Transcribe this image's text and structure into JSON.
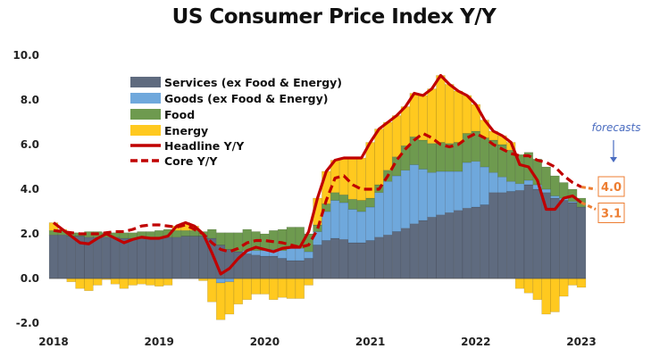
{
  "chart_data": {
    "type": "bar",
    "title": "US Consumer Price Index Y/Y",
    "xlabel": "",
    "ylabel": "",
    "ylim": [
      -2,
      10
    ],
    "y_ticks": [
      "10.0",
      "8.0",
      "6.0",
      "4.0",
      "2.0",
      "0.0",
      "-2.0"
    ],
    "x_ticks": [
      "2018",
      "2019",
      "2020",
      "2021",
      "2022",
      "2023"
    ],
    "grid": false,
    "legend_position": "top-left",
    "stacked": true,
    "series": [
      {
        "name": "Services (ex Food & Energy)",
        "kind": "bar",
        "color": "#5f6b7f",
        "values": [
          1.95,
          1.95,
          1.9,
          1.9,
          1.85,
          1.85,
          1.85,
          1.85,
          1.8,
          1.8,
          1.8,
          1.8,
          1.8,
          1.85,
          1.85,
          1.9,
          1.9,
          1.9,
          1.8,
          1.5,
          1.3,
          1.2,
          1.1,
          1.05,
          1.0,
          1.0,
          0.9,
          0.8,
          0.8,
          0.9,
          1.5,
          1.7,
          1.8,
          1.75,
          1.6,
          1.6,
          1.7,
          1.85,
          1.95,
          2.1,
          2.25,
          2.45,
          2.6,
          2.75,
          2.85,
          2.95,
          3.05,
          3.15,
          3.2,
          3.3,
          3.85,
          3.85,
          3.9,
          3.95,
          4.2,
          4.0,
          3.85,
          3.6,
          3.5,
          3.4,
          3.2
        ]
      },
      {
        "name": "Goods (ex Food & Energy)",
        "kind": "bar",
        "color": "#6fa8dc",
        "values": [
          0,
          0,
          0,
          0,
          0,
          0,
          0,
          0,
          0,
          0,
          0,
          0,
          0,
          0,
          0,
          0,
          0,
          0,
          0,
          -0.2,
          -0.15,
          0,
          0.15,
          0.2,
          0.25,
          0.3,
          0.35,
          0.55,
          0.55,
          0.3,
          0.6,
          1.3,
          1.7,
          1.65,
          1.5,
          1.4,
          1.5,
          2.0,
          2.4,
          2.5,
          2.6,
          2.65,
          2.3,
          2.0,
          1.95,
          1.85,
          1.75,
          2.05,
          2.05,
          1.7,
          0.9,
          0.7,
          0.45,
          0.3,
          0.2,
          0.2,
          0.15,
          0.1,
          0.1,
          0.05,
          0.0
        ]
      },
      {
        "name": "Food",
        "kind": "bar",
        "color": "#6e9a4f",
        "values": [
          0.2,
          0.2,
          0.15,
          0.15,
          0.25,
          0.25,
          0.2,
          0.2,
          0.25,
          0.25,
          0.3,
          0.3,
          0.35,
          0.35,
          0.3,
          0.25,
          0.25,
          0.2,
          0.4,
          0.55,
          0.75,
          0.85,
          0.95,
          0.85,
          0.75,
          0.85,
          0.95,
          0.95,
          0.95,
          0.8,
          0.3,
          0.35,
          0.35,
          0.35,
          0.45,
          0.5,
          0.4,
          0.35,
          0.5,
          0.85,
          1.1,
          1.25,
          1.3,
          1.3,
          1.3,
          1.25,
          1.3,
          1.3,
          1.35,
          1.3,
          1.45,
          1.45,
          1.4,
          1.3,
          1.25,
          1.15,
          1.0,
          0.9,
          0.7,
          0.55,
          0.4
        ]
      },
      {
        "name": "Energy",
        "kind": "bar",
        "color": "#ffc91f",
        "values": [
          0.35,
          0.05,
          -0.15,
          -0.45,
          -0.55,
          -0.3,
          -0.05,
          -0.25,
          -0.45,
          -0.3,
          -0.25,
          -0.3,
          -0.35,
          -0.3,
          0.2,
          0.35,
          0.2,
          -0.1,
          -1.05,
          -1.65,
          -1.45,
          -1.15,
          -0.95,
          -0.7,
          -0.7,
          -0.95,
          -0.85,
          -0.9,
          -0.9,
          -0.3,
          1.2,
          1.45,
          1.45,
          1.65,
          1.85,
          1.9,
          2.5,
          2.5,
          2.15,
          1.85,
          1.75,
          1.95,
          2.0,
          2.45,
          3.0,
          2.65,
          2.3,
          1.7,
          1.2,
          0.8,
          0.4,
          0.4,
          0.35,
          -0.45,
          -0.65,
          -0.95,
          -1.6,
          -1.5,
          -0.8,
          -0.3,
          -0.4
        ]
      },
      {
        "name": "Headline Y/Y",
        "kind": "line",
        "color": "#c00000",
        "dash": false,
        "values": [
          2.5,
          2.2,
          1.9,
          1.6,
          1.55,
          1.8,
          2.0,
          1.8,
          1.6,
          1.75,
          1.85,
          1.8,
          1.8,
          1.9,
          2.35,
          2.5,
          2.35,
          2.0,
          1.15,
          0.2,
          0.45,
          0.9,
          1.25,
          1.4,
          1.3,
          1.2,
          1.35,
          1.4,
          1.4,
          2.1,
          3.6,
          4.8,
          5.3,
          5.4,
          5.4,
          5.4,
          6.1,
          6.7,
          7.0,
          7.3,
          7.7,
          8.3,
          8.2,
          8.5,
          9.1,
          8.7,
          8.4,
          8.2,
          7.8,
          7.1,
          6.6,
          6.4,
          6.1,
          5.1,
          5.0,
          4.4,
          3.1,
          3.1,
          3.6,
          3.7,
          3.4
        ],
        "forecast": 3.1
      },
      {
        "name": "Core Y/Y",
        "kind": "line",
        "color": "#c00000",
        "dash": true,
        "values": [
          2.15,
          2.1,
          2.05,
          2.0,
          2.0,
          2.0,
          2.05,
          2.1,
          2.1,
          2.2,
          2.35,
          2.4,
          2.4,
          2.35,
          2.3,
          2.4,
          2.2,
          2.0,
          1.6,
          1.3,
          1.2,
          1.35,
          1.6,
          1.7,
          1.7,
          1.65,
          1.6,
          1.5,
          1.4,
          1.5,
          2.2,
          3.5,
          4.5,
          4.6,
          4.2,
          4.0,
          4.0,
          4.0,
          4.6,
          5.3,
          5.8,
          6.2,
          6.5,
          6.3,
          6.0,
          5.9,
          6.0,
          6.3,
          6.5,
          6.3,
          6.0,
          5.8,
          5.6,
          5.5,
          5.5,
          5.3,
          5.2,
          5.0,
          4.6,
          4.3,
          4.1
        ],
        "forecast": 4.0
      }
    ],
    "annotations": {
      "forecasts_label": "forecasts",
      "headline_forecast_label": "3.1",
      "core_forecast_label": "4.0",
      "forecast_color": "#ed7d31",
      "forecasts_label_color": "#4a6cc0"
    }
  }
}
